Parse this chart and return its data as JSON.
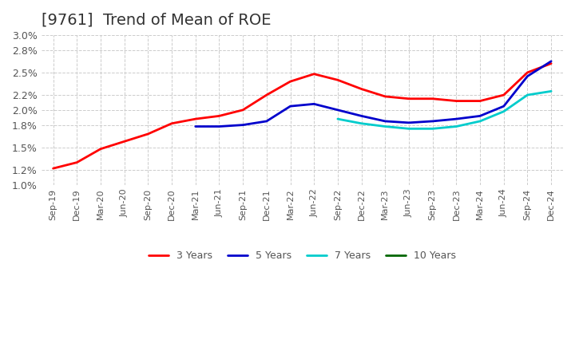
{
  "title": "[9761]  Trend of Mean of ROE",
  "title_fontsize": 14,
  "background_color": "#ffffff",
  "grid_color": "#cccccc",
  "ylim": [
    0.01,
    0.03
  ],
  "yticks": [
    0.01,
    0.012,
    0.015,
    0.018,
    0.02,
    0.022,
    0.025,
    0.028,
    0.03
  ],
  "x_labels": [
    "Sep-19",
    "Dec-19",
    "Mar-20",
    "Jun-20",
    "Sep-20",
    "Dec-20",
    "Mar-21",
    "Jun-21",
    "Sep-21",
    "Dec-21",
    "Mar-22",
    "Jun-22",
    "Sep-22",
    "Dec-22",
    "Mar-23",
    "Jun-23",
    "Sep-23",
    "Dec-23",
    "Mar-24",
    "Jun-24",
    "Sep-24",
    "Dec-24"
  ],
  "series": {
    "3 Years": {
      "color": "#ff0000",
      "linewidth": 2.0,
      "values": [
        0.0122,
        0.013,
        0.0148,
        0.0158,
        0.0168,
        0.0182,
        0.0188,
        0.0192,
        0.02,
        0.022,
        0.0238,
        0.0248,
        0.024,
        0.0228,
        0.0218,
        0.0215,
        0.0215,
        0.0212,
        0.0212,
        0.022,
        0.025,
        0.0262
      ]
    },
    "5 Years": {
      "color": "#0000cc",
      "linewidth": 2.0,
      "values": [
        null,
        null,
        null,
        null,
        null,
        null,
        0.0178,
        0.0178,
        0.018,
        0.0185,
        0.0205,
        0.0208,
        0.02,
        0.0192,
        0.0185,
        0.0183,
        0.0185,
        0.0188,
        0.0192,
        0.0205,
        0.0245,
        0.0265
      ]
    },
    "7 Years": {
      "color": "#00cccc",
      "linewidth": 2.0,
      "values": [
        null,
        null,
        null,
        null,
        null,
        null,
        null,
        null,
        null,
        null,
        null,
        null,
        0.0188,
        0.0182,
        0.0178,
        0.0175,
        0.0175,
        0.0178,
        0.0185,
        0.0198,
        0.022,
        0.0225
      ]
    },
    "10 Years": {
      "color": "#006600",
      "linewidth": 2.0,
      "values": [
        null,
        null,
        null,
        null,
        null,
        null,
        null,
        null,
        null,
        null,
        null,
        null,
        null,
        null,
        null,
        null,
        null,
        null,
        null,
        null,
        null,
        null
      ]
    }
  }
}
